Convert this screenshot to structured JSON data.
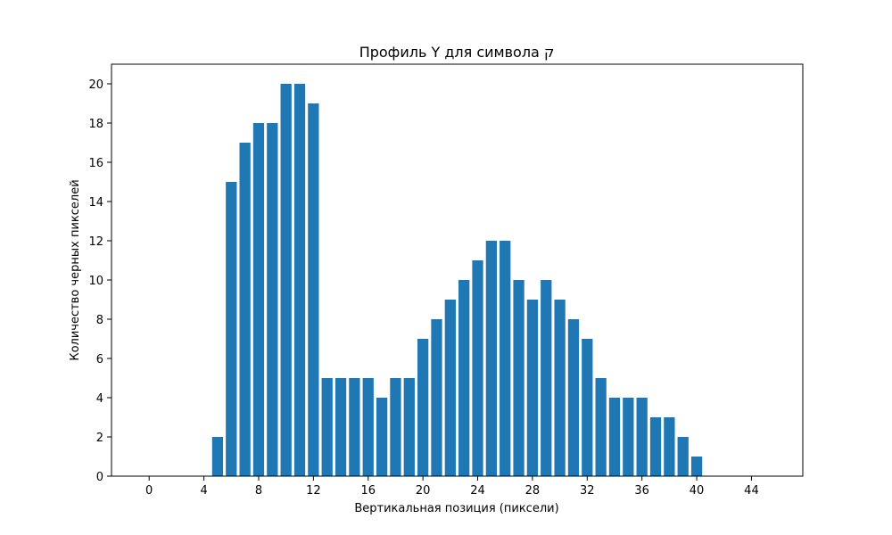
{
  "chart_data": {
    "type": "bar",
    "title": "Профиль Y для символа ק",
    "xlabel": "Вертикальная позиция (пиксели)",
    "ylabel": "Количество черных пикселей",
    "x": [
      0,
      1,
      2,
      3,
      4,
      5,
      6,
      7,
      8,
      9,
      10,
      11,
      12,
      13,
      14,
      15,
      16,
      17,
      18,
      19,
      20,
      21,
      22,
      23,
      24,
      25,
      26,
      27,
      28,
      29,
      30,
      31,
      32,
      33,
      34,
      35,
      36,
      37,
      38,
      39,
      40,
      41,
      42,
      43,
      44,
      45
    ],
    "values": [
      0,
      0,
      0,
      0,
      0,
      2,
      15,
      17,
      18,
      18,
      20,
      20,
      19,
      5,
      5,
      5,
      5,
      4,
      5,
      5,
      7,
      8,
      9,
      10,
      11,
      12,
      12,
      10,
      9,
      10,
      9,
      8,
      7,
      5,
      4,
      4,
      4,
      3,
      3,
      2,
      1,
      0,
      0,
      0,
      0,
      0
    ],
    "xlim": [
      -2.75,
      47.75
    ],
    "ylim": [
      0,
      21
    ],
    "xticks": [
      0,
      4,
      8,
      12,
      16,
      20,
      24,
      28,
      32,
      36,
      40,
      44
    ],
    "yticks": [
      0,
      2,
      4,
      6,
      8,
      10,
      12,
      14,
      16,
      18,
      20
    ],
    "bar_color": "#1f77b4",
    "grid": false,
    "legend": "none"
  }
}
